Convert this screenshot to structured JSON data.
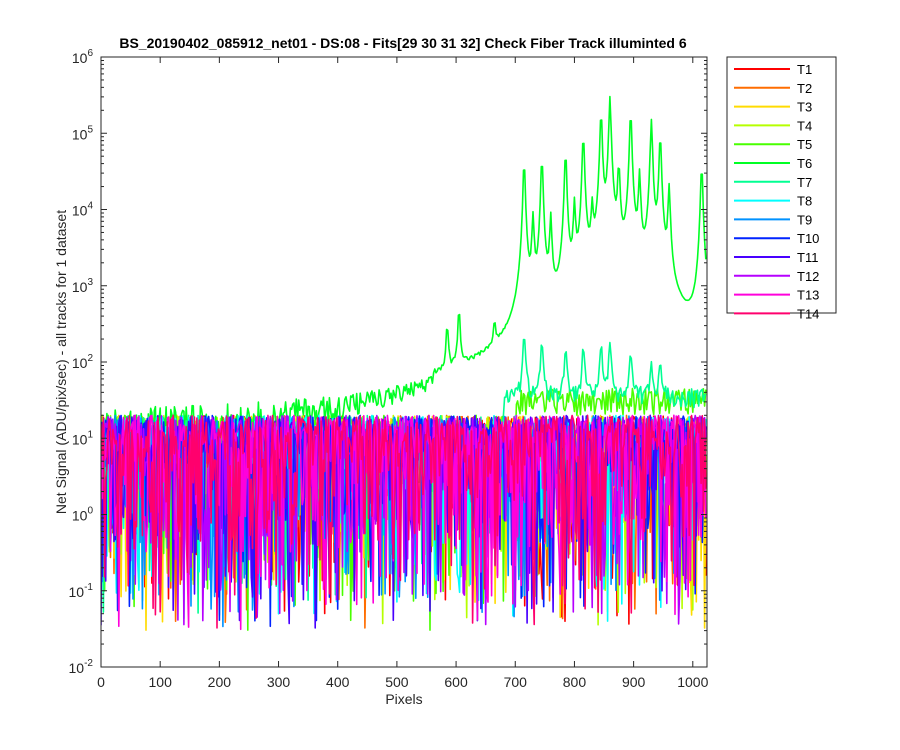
{
  "chart_data": {
    "type": "line",
    "title": "BS_20190402_085912_net01 - DS:08 - Fits[29  30  31  32]   Check Fiber     Track illuminted 6",
    "xlabel": "Pixels",
    "ylabel": "Net Signal (ADU/pix/sec) - all tracks for 1 dataset",
    "xlim": [
      0,
      1024
    ],
    "ylim": [
      0.01,
      1000000
    ],
    "yscale": "log",
    "xticks": [
      0,
      100,
      200,
      300,
      400,
      500,
      600,
      700,
      800,
      900,
      1000
    ],
    "yticks": [
      {
        "value": 0.01,
        "base": "10",
        "exp": "-2"
      },
      {
        "value": 0.1,
        "base": "10",
        "exp": "-1"
      },
      {
        "value": 1,
        "base": "10",
        "exp": "0"
      },
      {
        "value": 10,
        "base": "10",
        "exp": "1"
      },
      {
        "value": 100,
        "base": "10",
        "exp": "2"
      },
      {
        "value": 1000,
        "base": "10",
        "exp": "3"
      },
      {
        "value": 10000,
        "base": "10",
        "exp": "4"
      },
      {
        "value": 100000,
        "base": "10",
        "exp": "5"
      },
      {
        "value": 1000000,
        "base": "10",
        "exp": "6"
      }
    ],
    "grid": false,
    "legend_position": "outside-right",
    "series": [
      {
        "name": "T1",
        "color": "#ff0000"
      },
      {
        "name": "T2",
        "color": "#ff6d00"
      },
      {
        "name": "T3",
        "color": "#ffdb00"
      },
      {
        "name": "T4",
        "color": "#b6ff00"
      },
      {
        "name": "T5",
        "color": "#49ff00"
      },
      {
        "name": "T6",
        "color": "#00ff24"
      },
      {
        "name": "T7",
        "color": "#00ff92"
      },
      {
        "name": "T8",
        "color": "#00ffff"
      },
      {
        "name": "T9",
        "color": "#0092ff"
      },
      {
        "name": "T10",
        "color": "#0024ff"
      },
      {
        "name": "T11",
        "color": "#4900ff"
      },
      {
        "name": "T12",
        "color": "#b600ff"
      },
      {
        "name": "T13",
        "color": "#ff00db"
      },
      {
        "name": "T14",
        "color": "#ff006d"
      }
    ],
    "peaks_T6": [
      {
        "x": 585,
        "y": 250
      },
      {
        "x": 605,
        "y": 450
      },
      {
        "x": 665,
        "y": 200
      },
      {
        "x": 715,
        "y": 45000
      },
      {
        "x": 730,
        "y": 8000
      },
      {
        "x": 745,
        "y": 50000
      },
      {
        "x": 760,
        "y": 8000
      },
      {
        "x": 785,
        "y": 60000
      },
      {
        "x": 800,
        "y": 12000
      },
      {
        "x": 815,
        "y": 100000
      },
      {
        "x": 830,
        "y": 10000
      },
      {
        "x": 845,
        "y": 200000
      },
      {
        "x": 860,
        "y": 300000
      },
      {
        "x": 875,
        "y": 40000
      },
      {
        "x": 895,
        "y": 200000
      },
      {
        "x": 910,
        "y": 30000
      },
      {
        "x": 930,
        "y": 150000
      },
      {
        "x": 945,
        "y": 100000
      },
      {
        "x": 960,
        "y": 20000
      },
      {
        "x": 1015,
        "y": 40000
      }
    ],
    "peaks_T7": [
      {
        "x": 715,
        "y": 200
      },
      {
        "x": 745,
        "y": 150
      },
      {
        "x": 785,
        "y": 120
      },
      {
        "x": 815,
        "y": 130
      },
      {
        "x": 845,
        "y": 140
      },
      {
        "x": 860,
        "y": 150
      },
      {
        "x": 895,
        "y": 100
      },
      {
        "x": 930,
        "y": 60
      },
      {
        "x": 945,
        "y": 70
      }
    ],
    "baseline": {
      "typical_low": 0.5,
      "typical_high": 20,
      "min_spikes": 0.03
    }
  }
}
